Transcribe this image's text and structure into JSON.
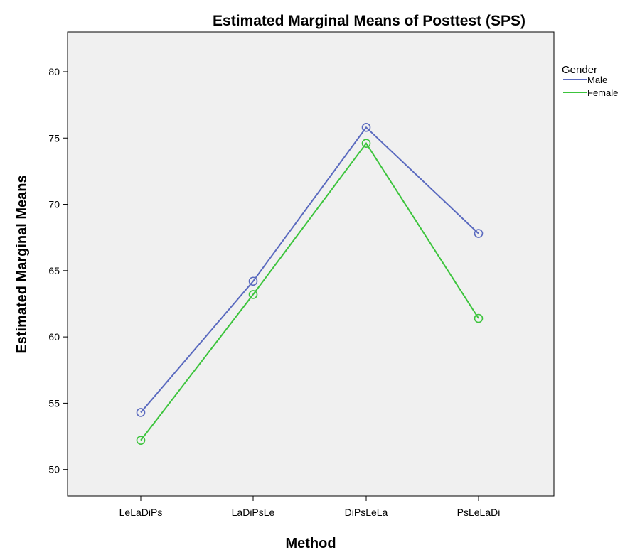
{
  "chart_data": {
    "type": "line",
    "title": "Estimated Marginal Means of Posttest (SPS)",
    "xlabel": "Method",
    "ylabel": "Estimated Marginal Means",
    "categories": [
      "LeLaDiPs",
      "LaDiPsLe",
      "DiPsLeLa",
      "PsLeLaDi"
    ],
    "ylim": [
      48,
      83
    ],
    "yticks": [
      50,
      55,
      60,
      65,
      70,
      75,
      80
    ],
    "grid": false,
    "legend": {
      "title": "Gender",
      "placement": "top-right"
    },
    "series": [
      {
        "name": "Male",
        "color": "#5a6abf",
        "values": [
          54.3,
          64.2,
          75.8,
          67.8
        ]
      },
      {
        "name": "Female",
        "color": "#3cc43c",
        "values": [
          52.2,
          63.2,
          74.6,
          61.4
        ]
      }
    ],
    "marker": "open-circle",
    "plot_background": "#f0f0f0"
  }
}
